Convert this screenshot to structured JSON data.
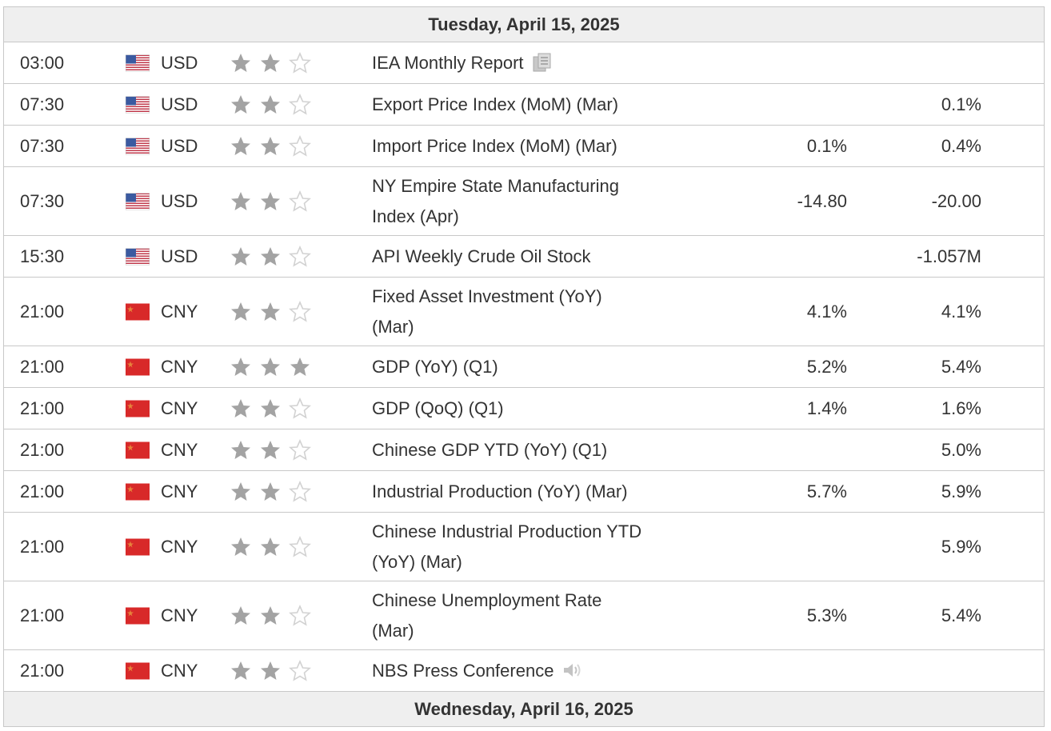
{
  "colors": {
    "header_bg": "#efefef",
    "border": "#c8c8c8",
    "star_on": "#a3a3a3",
    "star_off": "#d2d2d2",
    "cn_flag": "#d82929",
    "us_red": "#c0394b",
    "us_blue": "#3b5aa0"
  },
  "days": [
    {
      "label": "Tuesday, April 15, 2025",
      "events": [
        {
          "time": "03:00",
          "flag": "us-flag-icon",
          "currency": "USD",
          "stars": 2,
          "name": "IEA Monthly Report",
          "icon": "document-icon",
          "actual": "",
          "forecast": ""
        },
        {
          "time": "07:30",
          "flag": "us-flag-icon",
          "currency": "USD",
          "stars": 2,
          "name": "Export Price Index (MoM) (Mar)",
          "icon": "",
          "actual": "",
          "forecast": "0.1%"
        },
        {
          "time": "07:30",
          "flag": "us-flag-icon",
          "currency": "USD",
          "stars": 2,
          "name": "Import Price Index (MoM) (Mar)",
          "icon": "",
          "actual": "0.1%",
          "forecast": "0.4%"
        },
        {
          "time": "07:30",
          "flag": "us-flag-icon",
          "currency": "USD",
          "stars": 2,
          "name": "NY Empire State Manufacturing Index (Apr)",
          "icon": "",
          "actual": "-14.80",
          "forecast": "-20.00"
        },
        {
          "time": "15:30",
          "flag": "us-flag-icon",
          "currency": "USD",
          "stars": 2,
          "name": "API Weekly Crude Oil Stock",
          "icon": "",
          "actual": "",
          "forecast": "-1.057M"
        },
        {
          "time": "21:00",
          "flag": "cn-flag-icon",
          "currency": "CNY",
          "stars": 2,
          "name": "Fixed Asset Investment (YoY) (Mar)",
          "icon": "",
          "actual": "4.1%",
          "forecast": "4.1%"
        },
        {
          "time": "21:00",
          "flag": "cn-flag-icon",
          "currency": "CNY",
          "stars": 3,
          "name": "GDP (YoY) (Q1)",
          "icon": "",
          "actual": "5.2%",
          "forecast": "5.4%"
        },
        {
          "time": "21:00",
          "flag": "cn-flag-icon",
          "currency": "CNY",
          "stars": 2,
          "name": "GDP (QoQ) (Q1)",
          "icon": "",
          "actual": "1.4%",
          "forecast": "1.6%"
        },
        {
          "time": "21:00",
          "flag": "cn-flag-icon",
          "currency": "CNY",
          "stars": 2,
          "name": "Chinese GDP YTD (YoY) (Q1)",
          "icon": "",
          "actual": "",
          "forecast": "5.0%"
        },
        {
          "time": "21:00",
          "flag": "cn-flag-icon",
          "currency": "CNY",
          "stars": 2,
          "name": "Industrial Production (YoY) (Mar)",
          "icon": "",
          "actual": "5.7%",
          "forecast": "5.9%"
        },
        {
          "time": "21:00",
          "flag": "cn-flag-icon",
          "currency": "CNY",
          "stars": 2,
          "name": "Chinese Industrial Production YTD (YoY) (Mar)",
          "icon": "",
          "actual": "",
          "forecast": "5.9%"
        },
        {
          "time": "21:00",
          "flag": "cn-flag-icon",
          "currency": "CNY",
          "stars": 2,
          "name": "Chinese Unemployment Rate (Mar)",
          "icon": "",
          "actual": "5.3%",
          "forecast": "5.4%"
        },
        {
          "time": "21:00",
          "flag": "cn-flag-icon",
          "currency": "CNY",
          "stars": 2,
          "name": "NBS Press Conference",
          "icon": "speaker-icon",
          "actual": "",
          "forecast": ""
        }
      ]
    },
    {
      "label": "Wednesday, April 16, 2025",
      "events": []
    }
  ]
}
